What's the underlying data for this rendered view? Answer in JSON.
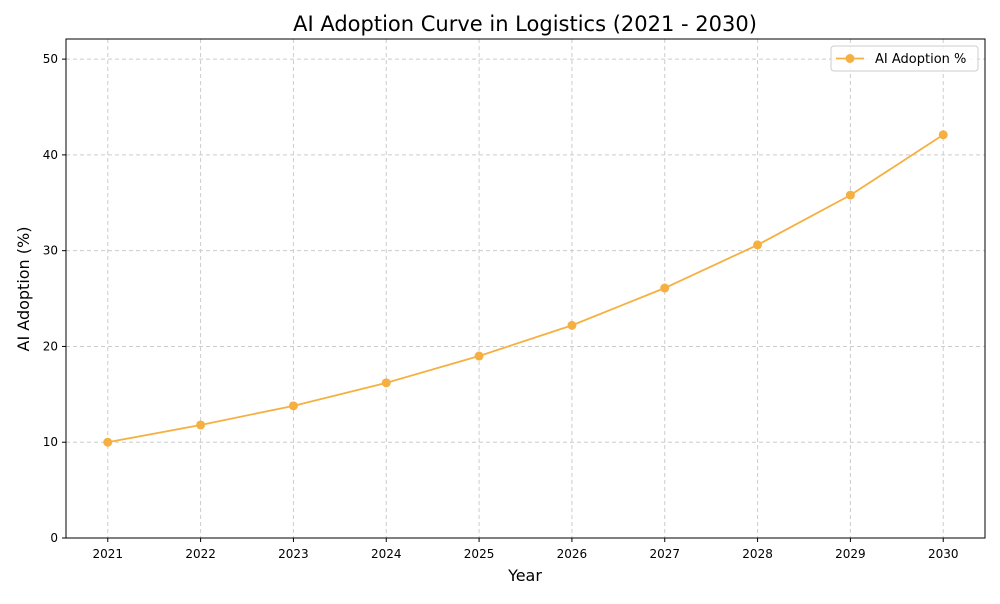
{
  "chart_data": {
    "type": "line",
    "title": "AI Adoption Curve in Logistics (2021 - 2030)",
    "xlabel": "Year",
    "ylabel": "AI Adoption (%)",
    "x": [
      2021,
      2022,
      2023,
      2024,
      2025,
      2026,
      2027,
      2028,
      2029,
      2030
    ],
    "series": [
      {
        "name": "AI Adoption %",
        "color": "#f5b041",
        "marker": "circle",
        "values": [
          10.0,
          11.8,
          13.8,
          16.2,
          19.0,
          22.2,
          26.1,
          30.6,
          35.8,
          42.1
        ]
      }
    ],
    "xticks": [
      "2021",
      "2022",
      "2023",
      "2024",
      "2025",
      "2026",
      "2027",
      "2028",
      "2029",
      "2030"
    ],
    "yticks": [
      "0",
      "10",
      "20",
      "30",
      "40",
      "50"
    ],
    "xlim": [
      2020.55,
      2030.45
    ],
    "ylim": [
      0,
      52.1
    ],
    "grid": true,
    "grid_style": "dashed",
    "legend_position": "top-right"
  }
}
